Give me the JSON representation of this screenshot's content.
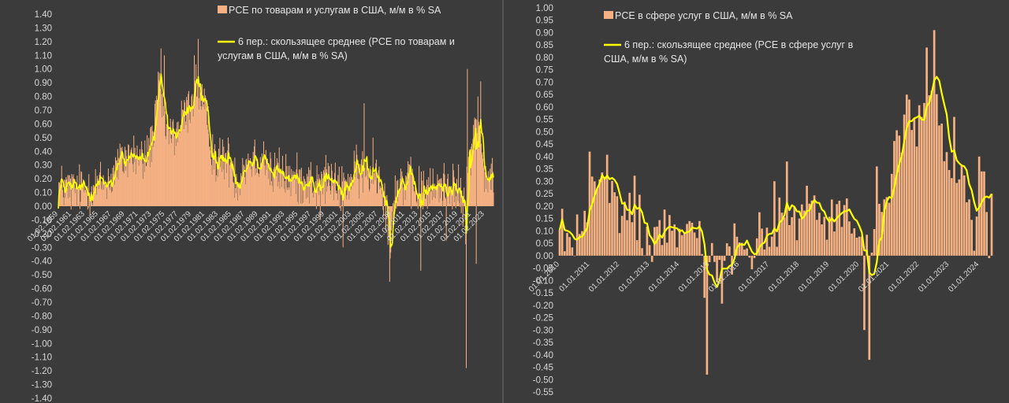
{
  "colors": {
    "background": "#3b3b3b",
    "bars": "#f4b183",
    "line": "#ffff00",
    "text": "#d8d8d8"
  },
  "chart_data": [
    {
      "type": "bar",
      "title": "",
      "legend": [
        {
          "name": "PCE по товарам и услугам в США, м/м в % SA",
          "kind": "bar"
        },
        {
          "name_lines": [
            "6 пер.: скользящее среднее (PCE по товарам и",
            "услугам в США, м/м в % SA)"
          ],
          "kind": "line"
        }
      ],
      "legend_position": "top",
      "ylim": [
        -1.4,
        1.4
      ],
      "y_tick_step": 0.1,
      "y_ticks": [
        "1.40",
        "1.30",
        "1.20",
        "1.10",
        "1.00",
        "0.90",
        "0.80",
        "0.70",
        "0.60",
        "0.50",
        "0.40",
        "0.30",
        "0.20",
        "0.10",
        "0.00",
        "-0.10",
        "-0.20",
        "-0.30",
        "-0.40",
        "-0.50",
        "-0.60",
        "-0.70",
        "-0.80",
        "-0.90",
        "-1.00",
        "-1.10",
        "-1.20",
        "-1.30",
        "-1.40"
      ],
      "x_ticks": [
        "01.02.1959",
        "01.02.1961",
        "01.02.1963",
        "01.02.1965",
        "01.02.1967",
        "01.02.1969",
        "01.02.1971",
        "01.02.1973",
        "01.02.1975",
        "01.02.1977",
        "01.02.1979",
        "01.02.1981",
        "01.02.1983",
        "01.02.1985",
        "01.02.1987",
        "01.02.1989",
        "01.02.1991",
        "01.02.1993",
        "01.02.1995",
        "01.02.1997",
        "01.02.1999",
        "01.02.2001",
        "01.02.2003",
        "01.02.2005",
        "01.02.2007",
        "01.02.2009",
        "01.02.2011",
        "01.02.2013",
        "01.02.2015",
        "01.02.2017",
        "01.02.2019",
        "01.02.2021",
        "01.02.2023"
      ],
      "x_range": [
        "1959-02",
        "2024-06"
      ],
      "trend_anchors": {
        "year": [
          1959,
          1961,
          1963,
          1965,
          1967,
          1968,
          1970,
          1972,
          1973.5,
          1974.3,
          1975,
          1976,
          1977,
          1978,
          1979,
          1979.8,
          1980.5,
          1981,
          1982,
          1983,
          1984,
          1985,
          1986,
          1987,
          1988,
          1989,
          1990,
          1991,
          1992,
          1993,
          1994,
          1995,
          1996,
          1997,
          1998,
          1999,
          2000,
          2001,
          2002,
          2003,
          2004,
          2005,
          2006,
          2007,
          2008,
          2008.6,
          2008.9,
          2009.3,
          2010,
          2011,
          2012,
          2013,
          2014,
          2015,
          2016,
          2017,
          2018,
          2019,
          2020.1,
          2020.3,
          2020.45,
          2020.7,
          2021,
          2021.5,
          2022,
          2022.4,
          2022.8,
          2023.2,
          2023.6,
          2024,
          2024.45
        ],
        "value": [
          0.15,
          0.12,
          0.13,
          0.15,
          0.2,
          0.3,
          0.38,
          0.32,
          0.55,
          0.9,
          0.62,
          0.5,
          0.55,
          0.65,
          0.75,
          0.88,
          0.78,
          0.7,
          0.45,
          0.3,
          0.35,
          0.32,
          0.18,
          0.3,
          0.35,
          0.35,
          0.38,
          0.22,
          0.25,
          0.22,
          0.2,
          0.18,
          0.2,
          0.18,
          0.12,
          0.2,
          0.2,
          0.1,
          0.16,
          0.18,
          0.25,
          0.25,
          0.22,
          0.25,
          0.12,
          -0.1,
          -0.35,
          0.05,
          0.15,
          0.18,
          0.15,
          0.1,
          0.13,
          0.1,
          0.15,
          0.15,
          0.18,
          0.1,
          0.0,
          -0.35,
          0.4,
          0.2,
          0.45,
          0.5,
          0.6,
          0.5,
          0.3,
          0.25,
          0.2,
          0.2,
          0.22
        ]
      },
      "notable_bars": [
        {
          "year": 1974.5,
          "value": 1.15
        },
        {
          "year": 1975.0,
          "value": 1.1
        },
        {
          "year": 1980.1,
          "value": 1.22
        },
        {
          "year": 1979.5,
          "value": 1.1
        },
        {
          "year": 1998.4,
          "value": -0.1
        },
        {
          "year": 2001.8,
          "value": -0.3
        },
        {
          "year": 2005.0,
          "value": 0.75
        },
        {
          "year": 2008.8,
          "value": -0.55
        },
        {
          "year": 2008.9,
          "value": -0.38
        },
        {
          "year": 2013.5,
          "value": -0.47
        },
        {
          "year": 2020.3,
          "value": -1.18
        },
        {
          "year": 2020.5,
          "value": 1.0
        },
        {
          "year": 2021.8,
          "value": -0.42
        },
        {
          "year": 2022.5,
          "value": 0.91
        },
        {
          "year": 2022.1,
          "value": 0.8
        },
        {
          "year": 2006.3,
          "value": 0.5
        },
        {
          "year": 2017.3,
          "value": -0.25
        }
      ]
    },
    {
      "type": "bar",
      "title": "",
      "legend": [
        {
          "name": "PCE в сфере услуг в США, м/м в % SA",
          "kind": "bar"
        },
        {
          "name_lines": [
            "6 пер.: скользящее среднее (PCE в сфере услуг в",
            "США, м/м в % SA)"
          ],
          "kind": "line"
        }
      ],
      "legend_position": "top",
      "ylim": [
        -0.55,
        1.0
      ],
      "y_tick_step": 0.05,
      "y_ticks": [
        "1.00",
        "0.95",
        "0.90",
        "0.85",
        "0.80",
        "0.75",
        "0.70",
        "0.65",
        "0.60",
        "0.55",
        "0.50",
        "0.45",
        "0.40",
        "0.35",
        "0.30",
        "0.25",
        "0.20",
        "0.15",
        "0.10",
        "0.05",
        "0.00",
        "-0.05",
        "-0.10",
        "-0.15",
        "-0.20",
        "-0.25",
        "-0.30",
        "-0.35",
        "-0.40",
        "-0.45",
        "-0.50",
        "-0.55"
      ],
      "x_ticks": [
        "01.01.2010",
        "01.01.2011",
        "01.01.2012",
        "01.01.2013",
        "01.01.2014",
        "01.01.2015",
        "01.01.2016",
        "01.01.2017",
        "01.01.2018",
        "01.01.2019",
        "01.01.2020",
        "01.01.2021",
        "01.01.2022",
        "01.01.2023",
        "01.01.2024"
      ],
      "x_range": [
        "2010-01",
        "2024-06"
      ],
      "trend_anchors": {
        "year": [
          2010.0,
          2010.4,
          2010.8,
          2011.2,
          2011.5,
          2011.8,
          2012.2,
          2012.5,
          2012.9,
          2013.3,
          2013.6,
          2014.0,
          2014.4,
          2014.8,
          2015.1,
          2015.4,
          2015.7,
          2016.0,
          2016.4,
          2016.8,
          2017.2,
          2017.6,
          2018.0,
          2018.4,
          2018.8,
          2019.2,
          2019.6,
          2020.0,
          2020.15,
          2020.35,
          2020.6,
          2020.9,
          2021.2,
          2021.6,
          2022.0,
          2022.3,
          2022.5,
          2022.8,
          2023.1,
          2023.5,
          2023.9,
          2024.2,
          2024.45
        ],
        "value": [
          0.12,
          0.05,
          0.15,
          0.25,
          0.32,
          0.22,
          0.15,
          0.2,
          0.08,
          0.12,
          0.07,
          0.15,
          0.12,
          0.15,
          0.05,
          -0.12,
          0.05,
          0.08,
          0.02,
          0.12,
          0.15,
          0.12,
          0.17,
          0.23,
          0.15,
          0.17,
          0.12,
          0.1,
          -0.02,
          0.0,
          0.1,
          0.25,
          0.45,
          0.5,
          0.55,
          0.65,
          0.58,
          0.48,
          0.35,
          0.25,
          0.15,
          0.2,
          0.22
        ]
      },
      "notable_bars": [
        {
          "year": 2011.0,
          "value": 0.42
        },
        {
          "year": 2011.15,
          "value": 0.3
        },
        {
          "year": 2014.9,
          "value": -0.48
        },
        {
          "year": 2014.8,
          "value": -0.17
        },
        {
          "year": 2020.3,
          "value": -0.42
        },
        {
          "year": 2020.2,
          "value": -0.3
        },
        {
          "year": 2020.6,
          "value": 0.36
        },
        {
          "year": 2021.6,
          "value": 0.65
        },
        {
          "year": 2021.7,
          "value": 0.63
        },
        {
          "year": 2022.25,
          "value": 0.84
        },
        {
          "year": 2022.5,
          "value": 0.91
        },
        {
          "year": 2022.1,
          "value": 0.56
        },
        {
          "year": 2023.2,
          "value": 0.56
        },
        {
          "year": 2017.6,
          "value": 0.38
        },
        {
          "year": 2024.0,
          "value": 0.4
        },
        {
          "year": 2024.1,
          "value": 0.34
        },
        {
          "year": 2024.2,
          "value": 0.34
        },
        {
          "year": 2024.4,
          "value": 0.25
        },
        {
          "year": 2023.8,
          "value": 0.02
        },
        {
          "year": 2024.3,
          "value": -0.01
        }
      ]
    }
  ]
}
